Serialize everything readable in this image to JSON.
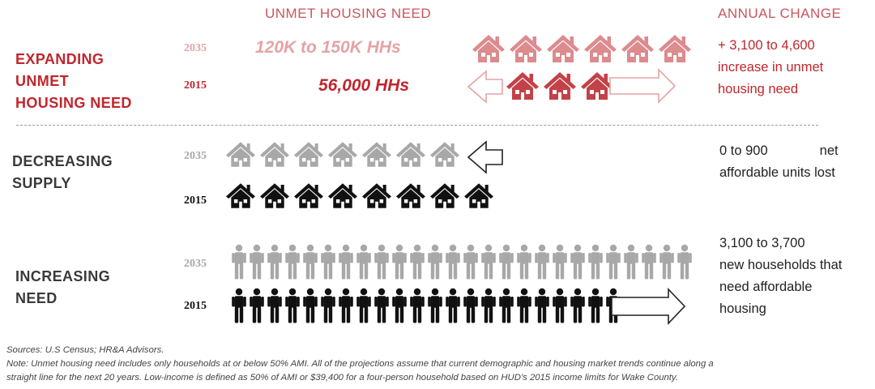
{
  "headers": {
    "unmet": "UNMET HOUSING NEED",
    "annual": "ANNUAL CHANGE"
  },
  "colors": {
    "red": "#c0262d",
    "light_red": "#e4a3a5",
    "house_light_red": "#dc8b8e",
    "house_red": "#c34148",
    "header_red": "#c9565e",
    "gray": "#a8a8a8",
    "black": "#111111"
  },
  "sections": {
    "expanding": {
      "label": [
        "EXPANDING",
        "UNMET",
        "HOUSING NEED"
      ],
      "year_2035": "2035",
      "year_2015": "2015",
      "hhs_2035": "120K to 150K HHs",
      "hhs_2015": "56,000 HHs",
      "houses_2035": 6,
      "houses_2015": 3,
      "change": [
        "+ 3,100 to 4,600",
        "increase in unmet",
        "housing need"
      ]
    },
    "supply": {
      "label": [
        "DECREASING",
        "SUPPLY"
      ],
      "year_2035": "2035",
      "year_2015": "2015",
      "houses_2035": 7,
      "houses_2015": 8,
      "change_range": "0 to 900",
      "change_net": "net",
      "change_line2": "affordable units lost"
    },
    "need": {
      "label": [
        "INCREASING",
        "NEED"
      ],
      "year_2035": "2035",
      "year_2015": "2015",
      "people_2035": 26,
      "people_2015": 22,
      "change": [
        "3,100 to 3,700",
        "new households that",
        "need affordable",
        "housing"
      ]
    }
  },
  "icons": {
    "house": "house-icon",
    "person": "person-icon",
    "arrow_left": "arrow-left-icon",
    "arrow_right": "arrow-right-icon"
  },
  "notes": {
    "sources": "Sources: U.S Census; HR&A Advisors.",
    "note_line1": "Note: Unmet housing need includes only households at or below 50% AMI. All of the projections assume that current demographic and housing market trends continue along a",
    "note_line2": "straight line for the next 20 years. Low-income is defined as 50% of AMI or $39,400 for a four-person household based on HUD’s 2015 income limits for Wake County."
  }
}
